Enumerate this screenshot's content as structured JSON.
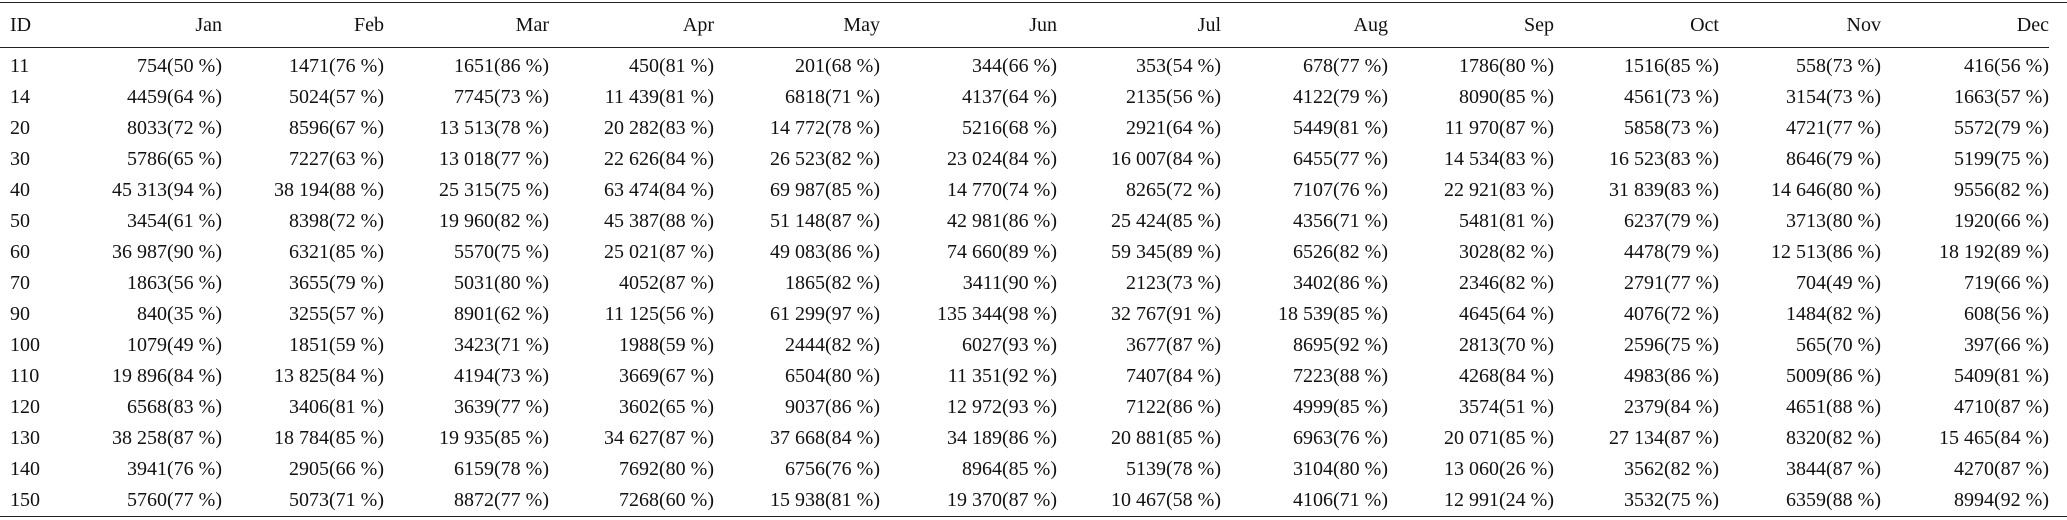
{
  "table": {
    "header": [
      "ID",
      "Jan",
      "Feb",
      "Mar",
      "Apr",
      "May",
      "Jun",
      "Jul",
      "Aug",
      "Sep",
      "Oct",
      "Nov",
      "Dec"
    ],
    "rows": [
      [
        "11",
        "754(50 %)",
        "1471(76 %)",
        "1651(86 %)",
        "450(81 %)",
        "201(68 %)",
        "344(66 %)",
        "353(54 %)",
        "678(77 %)",
        "1786(80 %)",
        "1516(85 %)",
        "558(73 %)",
        "416(56 %)"
      ],
      [
        "14",
        "4459(64 %)",
        "5024(57 %)",
        "7745(73 %)",
        "11 439(81 %)",
        "6818(71 %)",
        "4137(64 %)",
        "2135(56 %)",
        "4122(79 %)",
        "8090(85 %)",
        "4561(73 %)",
        "3154(73 %)",
        "1663(57 %)"
      ],
      [
        "20",
        "8033(72 %)",
        "8596(67 %)",
        "13 513(78 %)",
        "20 282(83 %)",
        "14 772(78 %)",
        "5216(68 %)",
        "2921(64 %)",
        "5449(81 %)",
        "11 970(87 %)",
        "5858(73 %)",
        "4721(77 %)",
        "5572(79 %)"
      ],
      [
        "30",
        "5786(65 %)",
        "7227(63 %)",
        "13 018(77 %)",
        "22 626(84 %)",
        "26 523(82 %)",
        "23 024(84 %)",
        "16 007(84 %)",
        "6455(77 %)",
        "14 534(83 %)",
        "16 523(83 %)",
        "8646(79 %)",
        "5199(75 %)"
      ],
      [
        "40",
        "45 313(94 %)",
        "38 194(88 %)",
        "25 315(75 %)",
        "63 474(84 %)",
        "69 987(85 %)",
        "14 770(74 %)",
        "8265(72 %)",
        "7107(76 %)",
        "22 921(83 %)",
        "31 839(83 %)",
        "14 646(80 %)",
        "9556(82 %)"
      ],
      [
        "50",
        "3454(61 %)",
        "8398(72 %)",
        "19 960(82 %)",
        "45 387(88 %)",
        "51 148(87 %)",
        "42 981(86 %)",
        "25 424(85 %)",
        "4356(71 %)",
        "5481(81 %)",
        "6237(79 %)",
        "3713(80 %)",
        "1920(66 %)"
      ],
      [
        "60",
        "36 987(90 %)",
        "6321(85 %)",
        "5570(75 %)",
        "25 021(87 %)",
        "49 083(86 %)",
        "74 660(89 %)",
        "59 345(89 %)",
        "6526(82 %)",
        "3028(82 %)",
        "4478(79 %)",
        "12 513(86 %)",
        "18 192(89 %)"
      ],
      [
        "70",
        "1863(56 %)",
        "3655(79 %)",
        "5031(80 %)",
        "4052(87 %)",
        "1865(82 %)",
        "3411(90 %)",
        "2123(73 %)",
        "3402(86 %)",
        "2346(82 %)",
        "2791(77 %)",
        "704(49 %)",
        "719(66 %)"
      ],
      [
        "90",
        "840(35 %)",
        "3255(57 %)",
        "8901(62 %)",
        "11 125(56 %)",
        "61 299(97 %)",
        "135 344(98 %)",
        "32 767(91 %)",
        "18 539(85 %)",
        "4645(64 %)",
        "4076(72 %)",
        "1484(82 %)",
        "608(56 %)"
      ],
      [
        "100",
        "1079(49 %)",
        "1851(59 %)",
        "3423(71 %)",
        "1988(59 %)",
        "2444(82 %)",
        "6027(93 %)",
        "3677(87 %)",
        "8695(92 %)",
        "2813(70 %)",
        "2596(75 %)",
        "565(70 %)",
        "397(66 %)"
      ],
      [
        "110",
        "19 896(84 %)",
        "13 825(84 %)",
        "4194(73 %)",
        "3669(67 %)",
        "6504(80 %)",
        "11 351(92 %)",
        "7407(84 %)",
        "7223(88 %)",
        "4268(84 %)",
        "4983(86 %)",
        "5009(86 %)",
        "5409(81 %)"
      ],
      [
        "120",
        "6568(83 %)",
        "3406(81 %)",
        "3639(77 %)",
        "3602(65 %)",
        "9037(86 %)",
        "12 972(93 %)",
        "7122(86 %)",
        "4999(85 %)",
        "3574(51 %)",
        "2379(84 %)",
        "4651(88 %)",
        "4710(87 %)"
      ],
      [
        "130",
        "38 258(87 %)",
        "18 784(85 %)",
        "19 935(85 %)",
        "34 627(87 %)",
        "37 668(84 %)",
        "34 189(86 %)",
        "20 881(85 %)",
        "6963(76 %)",
        "20 071(85 %)",
        "27 134(87 %)",
        "8320(82 %)",
        "15 465(84 %)"
      ],
      [
        "140",
        "3941(76 %)",
        "2905(66 %)",
        "6159(78 %)",
        "7692(80 %)",
        "6756(76 %)",
        "8964(85 %)",
        "5139(78 %)",
        "3104(80 %)",
        "13 060(26 %)",
        "3562(82 %)",
        "3844(87 %)",
        "4270(87 %)"
      ],
      [
        "150",
        "5760(77 %)",
        "5073(71 %)",
        "8872(77 %)",
        "7268(60 %)",
        "15 938(81 %)",
        "19 370(87 %)",
        "10 467(58 %)",
        "4106(71 %)",
        "12 991(24 %)",
        "3532(75 %)",
        "6359(88 %)",
        "8994(92 %)"
      ]
    ]
  }
}
